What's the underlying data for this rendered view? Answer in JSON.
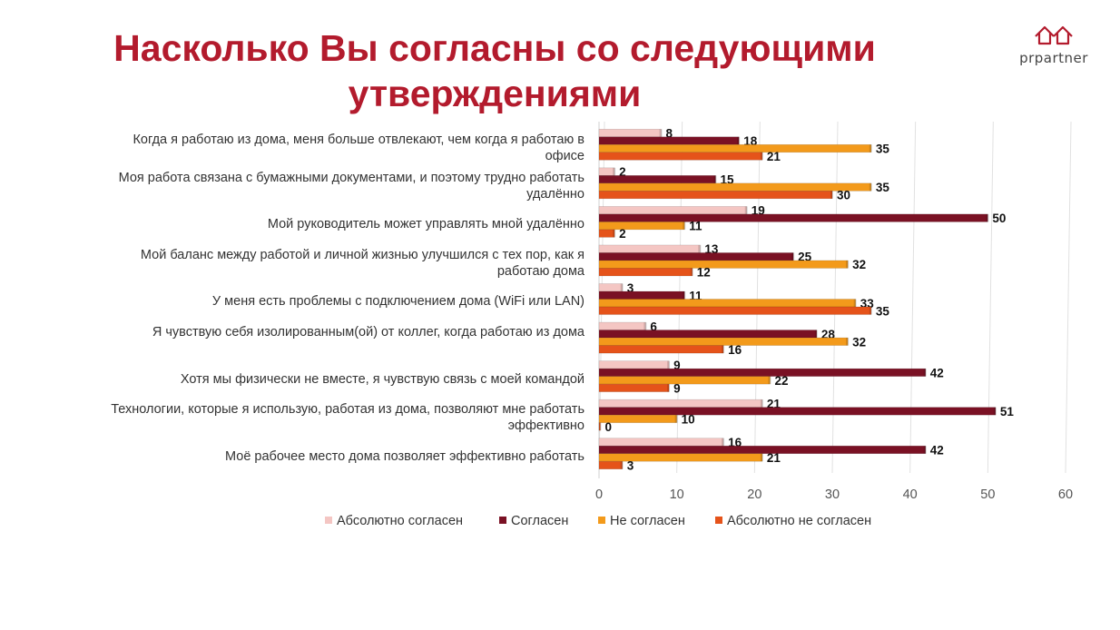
{
  "title": "Насколько Вы согласны со следующими утверждениями",
  "logo": {
    "text": "prpartner",
    "icon": "house-pair-icon"
  },
  "chart_data": {
    "type": "bar",
    "orientation": "horizontal",
    "categories": [
      "Когда я работаю из дома, меня больше отвлекают, чем когда я работаю в офисе",
      "Моя работа связана с бумажными документами, и поэтому трудно работать удалённо",
      "Мой руководитель может управлять мной удалённо",
      "Мой баланс между работой и личной жизнью улучшился с тех пор, как я работаю дома",
      "У меня есть проблемы с подключением дома (WiFi или LAN)",
      "Я чувствую себя изолированным(ой) от коллег, когда работаю из дома",
      "Хотя мы физически не вместе, я чувствую связь с моей командой",
      "Технологии, которые я использую, работая из дома, позволяют мне работать эффективно",
      "Моё рабочее место дома позволяет эффективно работать"
    ],
    "series": [
      {
        "name": "Абсолютно согласен",
        "color": "#f4c6c3",
        "values": [
          8,
          2,
          19,
          13,
          3,
          6,
          9,
          21,
          16
        ]
      },
      {
        "name": "Согласен",
        "color": "#7a1124",
        "values": [
          18,
          15,
          50,
          25,
          11,
          28,
          42,
          51,
          42
        ]
      },
      {
        "name": "Не согласен",
        "color": "#f39a1b",
        "values": [
          35,
          35,
          11,
          32,
          33,
          32,
          22,
          10,
          21
        ]
      },
      {
        "name": "Абсолютно не согласен",
        "color": "#e5531a",
        "values": [
          21,
          30,
          2,
          12,
          35,
          16,
          9,
          0,
          3
        ]
      }
    ],
    "xlim": [
      0,
      60
    ],
    "xticks": [
      0,
      10,
      20,
      30,
      40,
      50,
      60
    ],
    "grid": true,
    "legend_position": "bottom",
    "data_labels": true
  }
}
